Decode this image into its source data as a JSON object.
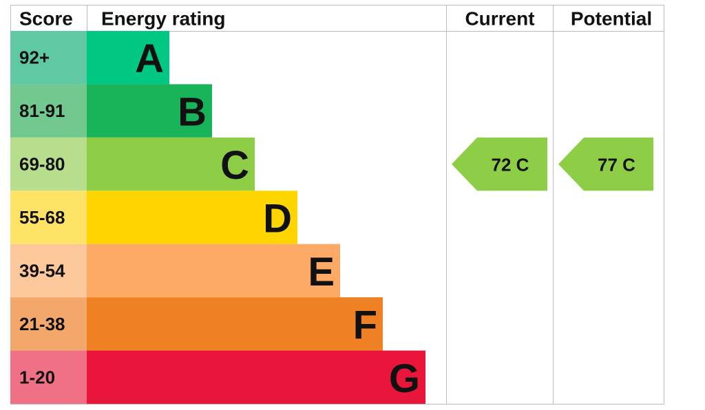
{
  "header": {
    "score": "Score",
    "energy_rating": "Energy rating",
    "current": "Current",
    "potential": "Potential"
  },
  "rows": [
    {
      "score": "92+",
      "letter": "A"
    },
    {
      "score": "81-91",
      "letter": "B"
    },
    {
      "score": "69-80",
      "letter": "C"
    },
    {
      "score": "55-68",
      "letter": "D"
    },
    {
      "score": "39-54",
      "letter": "E"
    },
    {
      "score": "21-38",
      "letter": "F"
    },
    {
      "score": "1-20",
      "letter": "G"
    }
  ],
  "current": {
    "label": "72 C",
    "band": "C"
  },
  "potential": {
    "label": "77 C",
    "band": "C"
  }
}
